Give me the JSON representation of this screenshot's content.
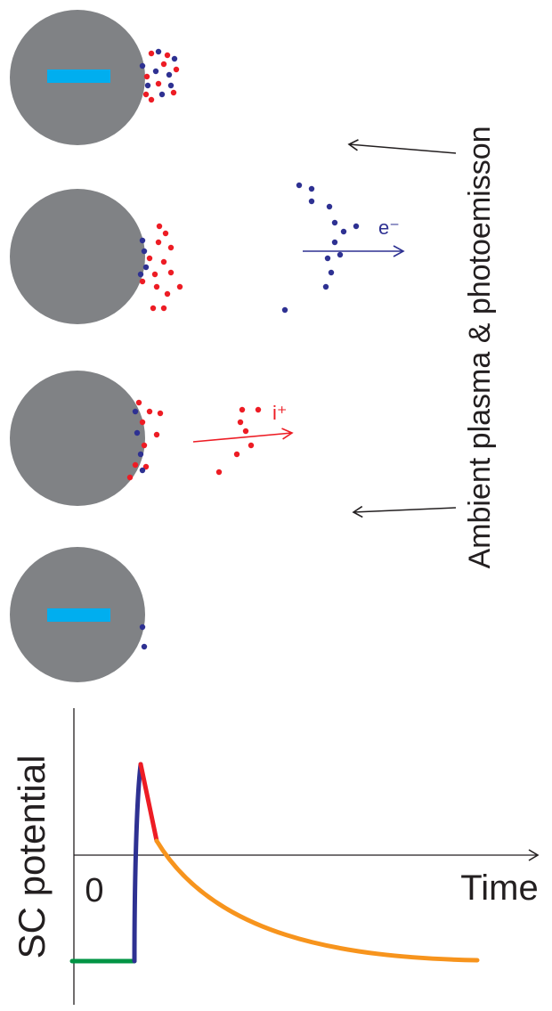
{
  "labels": {
    "ambient": "Ambient plasma & photoemisson",
    "ion": "i⁺",
    "electron": "e⁻"
  },
  "graph": {
    "ylabel": "SC potential",
    "xlabel": "Time",
    "origin_label": "0"
  },
  "colors": {
    "sphere": "#808285",
    "bar": "#00aeef",
    "ion": "#ed1c24",
    "electron": "#2e3192",
    "arrow": "#231f20",
    "phase_initial": "#009444",
    "phase_electron": "#2e3192",
    "phase_ion": "#ed1c24",
    "phase_relax": "#f7941d"
  }
}
